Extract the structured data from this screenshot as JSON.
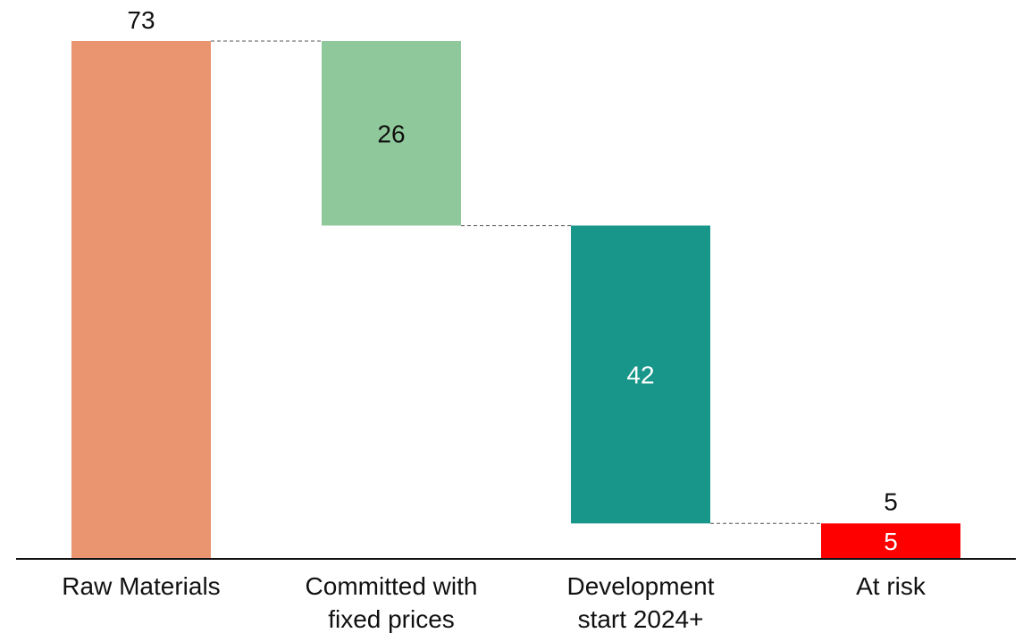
{
  "chart_data": {
    "type": "waterfall",
    "categories": [
      [
        "Raw Materials"
      ],
      [
        "Committed with",
        "fixed prices"
      ],
      [
        "Development",
        "start 2024+"
      ],
      [
        "At risk"
      ]
    ],
    "bars": [
      {
        "value": 73,
        "kind": "total",
        "color": "#EA9470",
        "label": "73",
        "label_position": "above",
        "label_color": "#111111"
      },
      {
        "value": 26,
        "kind": "decrease",
        "color": "#8FC89A",
        "label": "26",
        "label_position": "inside",
        "label_color": "#111111"
      },
      {
        "value": 42,
        "kind": "decrease",
        "color": "#19968A",
        "label": "42",
        "label_position": "inside",
        "label_color": "#ffffff"
      },
      {
        "value": 5,
        "kind": "total",
        "color": "#FF0000",
        "label": "5",
        "label_position": "inside",
        "label_color": "#ffffff",
        "extra_label": "5"
      }
    ],
    "ylim": [
      0,
      73
    ],
    "connectors": "dashed",
    "grid": false,
    "legend": "none",
    "title": "",
    "xlabel": "",
    "ylabel": ""
  }
}
